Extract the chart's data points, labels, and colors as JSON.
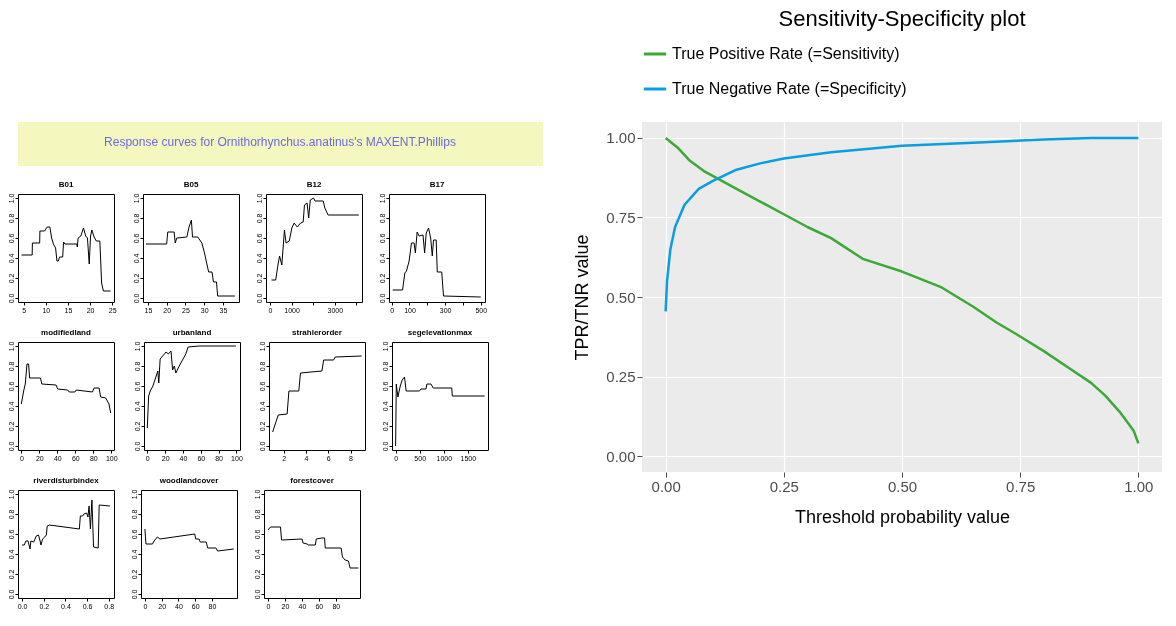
{
  "chart_data": [
    {
      "type": "other",
      "title": "Response curves for Ornithorhynchus.anatinus's MAXENT.Phillips"
    },
    {
      "type": "line",
      "title": "B01",
      "color": "#000000",
      "x": [
        4.5,
        6.9,
        6.95,
        8.6,
        8.65,
        9.7,
        10.3,
        10.9,
        11.3,
        11.7,
        12.2,
        12.5,
        12.8,
        13.1,
        13.8,
        14.0,
        14.3,
        17.0,
        17.1,
        17.3,
        17.9,
        18.5,
        19.0,
        19.4,
        19.8,
        20.1,
        20.4,
        20.9,
        21.4,
        22.2,
        22.6,
        23.0,
        24.6
      ],
      "values": [
        0.43,
        0.43,
        0.55,
        0.55,
        0.67,
        0.67,
        0.71,
        0.71,
        0.6,
        0.54,
        0.5,
        0.37,
        0.37,
        0.41,
        0.41,
        0.56,
        0.54,
        0.54,
        0.51,
        0.6,
        0.62,
        0.7,
        0.62,
        0.6,
        0.34,
        0.62,
        0.68,
        0.61,
        0.57,
        0.57,
        0.15,
        0.07,
        0.07
      ],
      "xlim": [
        3.7,
        25.4
      ],
      "xticks": [
        5,
        10,
        15,
        20,
        25
      ],
      "ylim": [
        -0.04,
        1.04
      ],
      "yticks": [
        {
          "value": 0,
          "label": "0.0"
        },
        0.2,
        0.4,
        0.6,
        0.8,
        {
          "value": 1,
          "label": "1.0"
        }
      ]
    },
    {
      "type": "line",
      "title": "B05",
      "color": "#000000",
      "x": [
        14.5,
        20.0,
        20.3,
        22.0,
        22.3,
        22.7,
        25.4,
        25.9,
        26.6,
        26.9,
        28.3,
        29.4,
        30.1,
        30.5,
        31.2,
        32.1,
        32.5,
        33.3,
        33.6,
        38.2
      ],
      "values": [
        0.54,
        0.54,
        0.66,
        0.66,
        0.55,
        0.6,
        0.61,
        0.7,
        0.78,
        0.61,
        0.61,
        0.55,
        0.45,
        0.38,
        0.26,
        0.26,
        0.16,
        0.16,
        0.02,
        0.02
      ],
      "xlim": [
        13.7,
        39.3
      ],
      "xticks": [
        15,
        20,
        25,
        30,
        35
      ],
      "ylim": [
        -0.04,
        1.04
      ],
      "yticks": [
        {
          "value": 0,
          "label": "0.0"
        },
        0.2,
        0.4,
        0.6,
        0.8,
        {
          "value": 1,
          "label": "1.0"
        }
      ]
    },
    {
      "type": "line",
      "title": "B12",
      "color": "#000000",
      "x": [
        75,
        269,
        373,
        448,
        552,
        672,
        746,
        896,
        1015,
        1120,
        1269,
        1418,
        1538,
        1597,
        1717,
        1791,
        1866,
        2015,
        2090,
        2463,
        2538,
        2687,
        4106
      ],
      "values": [
        0.18,
        0.18,
        0.33,
        0.42,
        0.33,
        0.68,
        0.55,
        0.57,
        0.7,
        0.75,
        0.71,
        0.75,
        0.76,
        0.93,
        0.95,
        0.8,
        0.98,
        1.0,
        0.97,
        0.97,
        0.9,
        0.83,
        0.83
      ],
      "xlim": [
        -179,
        4254
      ],
      "xticks": [
        0,
        1000,
        {
          "value": 2000,
          "label": null
        },
        3000,
        {
          "value": 4000,
          "label": null
        }
      ],
      "ylim": [
        -0.04,
        1.04
      ],
      "yticks": [
        {
          "value": 0,
          "label": "0.0"
        },
        0.2,
        0.4,
        0.6,
        0.8,
        {
          "value": 1,
          "label": "1.0"
        }
      ]
    },
    {
      "type": "line",
      "title": "B17",
      "color": "#000000",
      "x": [
        6,
        61,
        74,
        83,
        98,
        111,
        126,
        133,
        143,
        154,
        176,
        185,
        194,
        207,
        219,
        228,
        235,
        250,
        256,
        281,
        291,
        500
      ],
      "values": [
        0.08,
        0.08,
        0.25,
        0.27,
        0.37,
        0.55,
        0.55,
        0.45,
        0.66,
        0.62,
        0.63,
        0.45,
        0.65,
        0.7,
        0.6,
        0.42,
        0.58,
        0.58,
        0.26,
        0.26,
        0.02,
        0.01
      ],
      "xlim": [
        -15,
        524
      ],
      "xticks": [
        0,
        100,
        {
          "value": 200,
          "label": null
        },
        300,
        {
          "value": 400,
          "label": null
        },
        500
      ],
      "ylim": [
        -0.04,
        1.04
      ],
      "yticks": [
        {
          "value": 0,
          "label": "0.0"
        },
        0.2,
        0.4,
        0.6,
        0.8,
        {
          "value": 1,
          "label": "1.0"
        }
      ]
    },
    {
      "type": "line",
      "title": "modifiedland",
      "color": "#000000",
      "x": [
        0,
        2.6,
        4.4,
        6.3,
        8.1,
        9.2,
        21.3,
        22.8,
        38.6,
        40.4,
        51.5,
        53.3,
        59.6,
        61,
        79,
        80.9,
        86.4,
        88.2,
        93.8,
        97.4,
        99.3
      ],
      "values": [
        0.42,
        0.55,
        0.62,
        0.82,
        0.82,
        0.68,
        0.68,
        0.62,
        0.61,
        0.57,
        0.56,
        0.54,
        0.54,
        0.56,
        0.54,
        0.58,
        0.58,
        0.49,
        0.48,
        0.42,
        0.33
      ],
      "xlim": [
        -3.7,
        103
      ],
      "xticks": [
        0,
        20,
        40,
        60,
        80,
        100
      ],
      "ylim": [
        -0.04,
        1.04
      ],
      "yticks": [
        {
          "value": 0,
          "label": "0.0"
        },
        0.2,
        0.4,
        0.6,
        0.8,
        {
          "value": 1,
          "label": "1.0"
        }
      ]
    },
    {
      "type": "line",
      "title": "urbanland",
      "color": "#000000",
      "x": [
        0,
        1.5,
        3.3,
        6.3,
        11.8,
        12.9,
        14.4,
        21,
        23.6,
        26.6,
        28.4,
        30.3,
        32.1,
        35.8,
        43.2,
        45.8,
        57.9,
        99.3
      ],
      "values": [
        0.18,
        0.5,
        0.55,
        0.6,
        0.75,
        0.63,
        0.87,
        0.94,
        0.92,
        0.95,
        0.76,
        0.8,
        0.73,
        0.8,
        0.92,
        0.99,
        1.0,
        1.0
      ],
      "xlim": [
        -3.7,
        104
      ],
      "xticks": [
        0,
        20,
        40,
        60,
        80,
        100
      ],
      "ylim": [
        -0.04,
        1.04
      ],
      "yticks": [
        {
          "value": 0,
          "label": "0.0"
        },
        0.2,
        0.4,
        0.6,
        0.8,
        {
          "value": 1,
          "label": "1.0"
        }
      ]
    },
    {
      "type": "line",
      "title": "strahlerorder",
      "color": "#000000",
      "x": [
        1,
        1.5,
        2.3,
        2.46,
        3.35,
        3.5,
        5.43,
        5.58,
        6.48,
        6.62,
        9
      ],
      "values": [
        0.14,
        0.31,
        0.32,
        0.55,
        0.55,
        0.73,
        0.75,
        0.86,
        0.86,
        0.89,
        0.9
      ],
      "xlim": [
        0.67,
        9.3
      ],
      "xticks": [
        2,
        4,
        6,
        8
      ],
      "ylim": [
        -0.04,
        1.04
      ],
      "yticks": [
        {
          "value": 0,
          "label": "0.0"
        },
        0.2,
        0.4,
        0.6,
        0.8,
        {
          "value": 1,
          "label": "1.0"
        }
      ]
    },
    {
      "type": "line",
      "title": "segelevationmax",
      "color": "#000000",
      "x": [
        0,
        14,
        48,
        96,
        137,
        185,
        219,
        493,
        527,
        630,
        651,
        733,
        781,
        1165,
        1178,
        1850
      ],
      "values": [
        0.0,
        0.62,
        0.49,
        0.6,
        0.66,
        0.69,
        0.55,
        0.55,
        0.57,
        0.57,
        0.62,
        0.62,
        0.58,
        0.58,
        0.5,
        0.5
      ],
      "xlim": [
        -75,
        1918
      ],
      "xticks": [
        0,
        500,
        1000,
        1500
      ],
      "ylim": [
        -0.04,
        1.04
      ],
      "yticks": [
        {
          "value": 0,
          "label": "0.0"
        },
        0.2,
        0.4,
        0.6,
        0.8,
        {
          "value": 1,
          "label": "1.0"
        }
      ]
    },
    {
      "type": "line",
      "title": "riverdisturbindex",
      "color": "#000000",
      "x": [
        0,
        0.02,
        0.035,
        0.055,
        0.064,
        0.073,
        0.081,
        0.107,
        0.131,
        0.151,
        0.166,
        0.174,
        0.189,
        0.209,
        0.224,
        0.232,
        0.253,
        0.529,
        0.538,
        0.558,
        0.572,
        0.596,
        0.608,
        0.619,
        0.631,
        0.645,
        0.66,
        0.703,
        0.712,
        0.811
      ],
      "values": [
        0.49,
        0.49,
        0.53,
        0.53,
        0.49,
        0.45,
        0.53,
        0.52,
        0.58,
        0.59,
        0.53,
        0.49,
        0.55,
        0.57,
        0.59,
        0.68,
        0.69,
        0.65,
        0.78,
        0.78,
        0.8,
        0.81,
        0.77,
        0.88,
        0.65,
        0.94,
        0.47,
        0.46,
        0.89,
        0.88
      ],
      "xlim": [
        -0.038,
        0.849
      ],
      "xticks": [
        {
          "value": 0,
          "label": "0.0"
        },
        0.2,
        0.4,
        0.6,
        0.8
      ],
      "ylim": [
        -0.04,
        1.04
      ],
      "yticks": [
        {
          "value": 0,
          "label": "0.0"
        },
        0.2,
        0.4,
        0.6,
        0.8,
        {
          "value": 1,
          "label": "1.0"
        }
      ]
    },
    {
      "type": "line",
      "title": "woodlandcover",
      "color": "#000000",
      "x": [
        0,
        1.2,
        9,
        10.9,
        14.8,
        17.9,
        59.5,
        60.7,
        64.6,
        66.1,
        73.2,
        75.1,
        84.8,
        86.8,
        106.2
      ],
      "values": [
        0.65,
        0.5,
        0.5,
        0.53,
        0.57,
        0.55,
        0.6,
        0.55,
        0.55,
        0.52,
        0.52,
        0.46,
        0.46,
        0.43,
        0.45
      ],
      "xlim": [
        -4.7,
        110
      ],
      "xticks": [
        0,
        20,
        40,
        60,
        80
      ],
      "ylim": [
        -0.04,
        1.04
      ],
      "yticks": [
        {
          "value": 0,
          "label": "0.0"
        },
        0.2,
        0.4,
        0.6,
        0.8,
        {
          "value": 1,
          "label": "1.0"
        }
      ]
    },
    {
      "type": "line",
      "title": "forestcover",
      "color": "#000000",
      "x": [
        0,
        3.1,
        14.8,
        16,
        40.2,
        41.4,
        46.1,
        48,
        55.9,
        57,
        63.7,
        66.8,
        67.6,
        86.3,
        87.9,
        91,
        94.9,
        96.9,
        106.6
      ],
      "values": [
        0.64,
        0.67,
        0.67,
        0.54,
        0.55,
        0.51,
        0.5,
        0.49,
        0.49,
        0.55,
        0.56,
        0.56,
        0.46,
        0.46,
        0.37,
        0.34,
        0.33,
        0.26,
        0.26
      ],
      "xlim": [
        -4.7,
        108.6
      ],
      "xticks": [
        0,
        20,
        40,
        60,
        80
      ],
      "ylim": [
        -0.04,
        1.04
      ],
      "yticks": [
        {
          "value": 0,
          "label": "0.0"
        },
        0.2,
        0.4,
        0.6,
        0.8,
        {
          "value": 1,
          "label": "1.0"
        }
      ]
    },
    {
      "type": "line",
      "title": "Sensitivity-Specificity plot",
      "xlabel": "Threshold probability value",
      "ylabel": "TPR/TNR value",
      "legend": "top",
      "grid": true,
      "series": [
        {
          "name": "True Positive Rate (=Sensitivity)",
          "color": "#3aaa35",
          "x": [
            0,
            0.025,
            0.05,
            0.083,
            0.15,
            0.2,
            0.25,
            0.3,
            0.35,
            0.417,
            0.5,
            0.584,
            0.65,
            0.7,
            0.75,
            0.8,
            0.85,
            0.9,
            0.93,
            0.96,
            0.98,
            0.99,
            1.0
          ],
          "values": [
            1.0,
            0.97,
            0.93,
            0.894,
            0.84,
            0.8,
            0.76,
            0.72,
            0.685,
            0.62,
            0.58,
            0.53,
            0.47,
            0.42,
            0.376,
            0.33,
            0.28,
            0.23,
            0.19,
            0.14,
            0.1,
            0.08,
            0.04
          ]
        },
        {
          "name": "True Negative Rate (=Specificity)",
          "color": "#0a9ee0",
          "x": [
            0,
            0.003,
            0.01,
            0.02,
            0.04,
            0.07,
            0.1,
            0.15,
            0.2,
            0.25,
            0.35,
            0.5,
            0.65,
            0.8,
            0.9,
            1.0
          ],
          "values": [
            0.455,
            0.55,
            0.65,
            0.72,
            0.79,
            0.84,
            0.865,
            0.9,
            0.92,
            0.935,
            0.955,
            0.975,
            0.985,
            0.995,
            1.0,
            1.0
          ]
        }
      ],
      "xlim": [
        -0.05,
        1.05
      ],
      "xticks": [
        {
          "value": 0,
          "label": "0.00"
        },
        0.25,
        {
          "value": 0.5,
          "label": "0.50"
        },
        0.75,
        {
          "value": 1,
          "label": "1.00"
        }
      ],
      "ylim": [
        -0.05,
        1.05
      ],
      "yticks": [
        {
          "value": 0,
          "label": "0.00"
        },
        0.25,
        {
          "value": 0.5,
          "label": "0.50"
        },
        0.75,
        {
          "value": 1,
          "label": "1.00"
        }
      ]
    }
  ]
}
